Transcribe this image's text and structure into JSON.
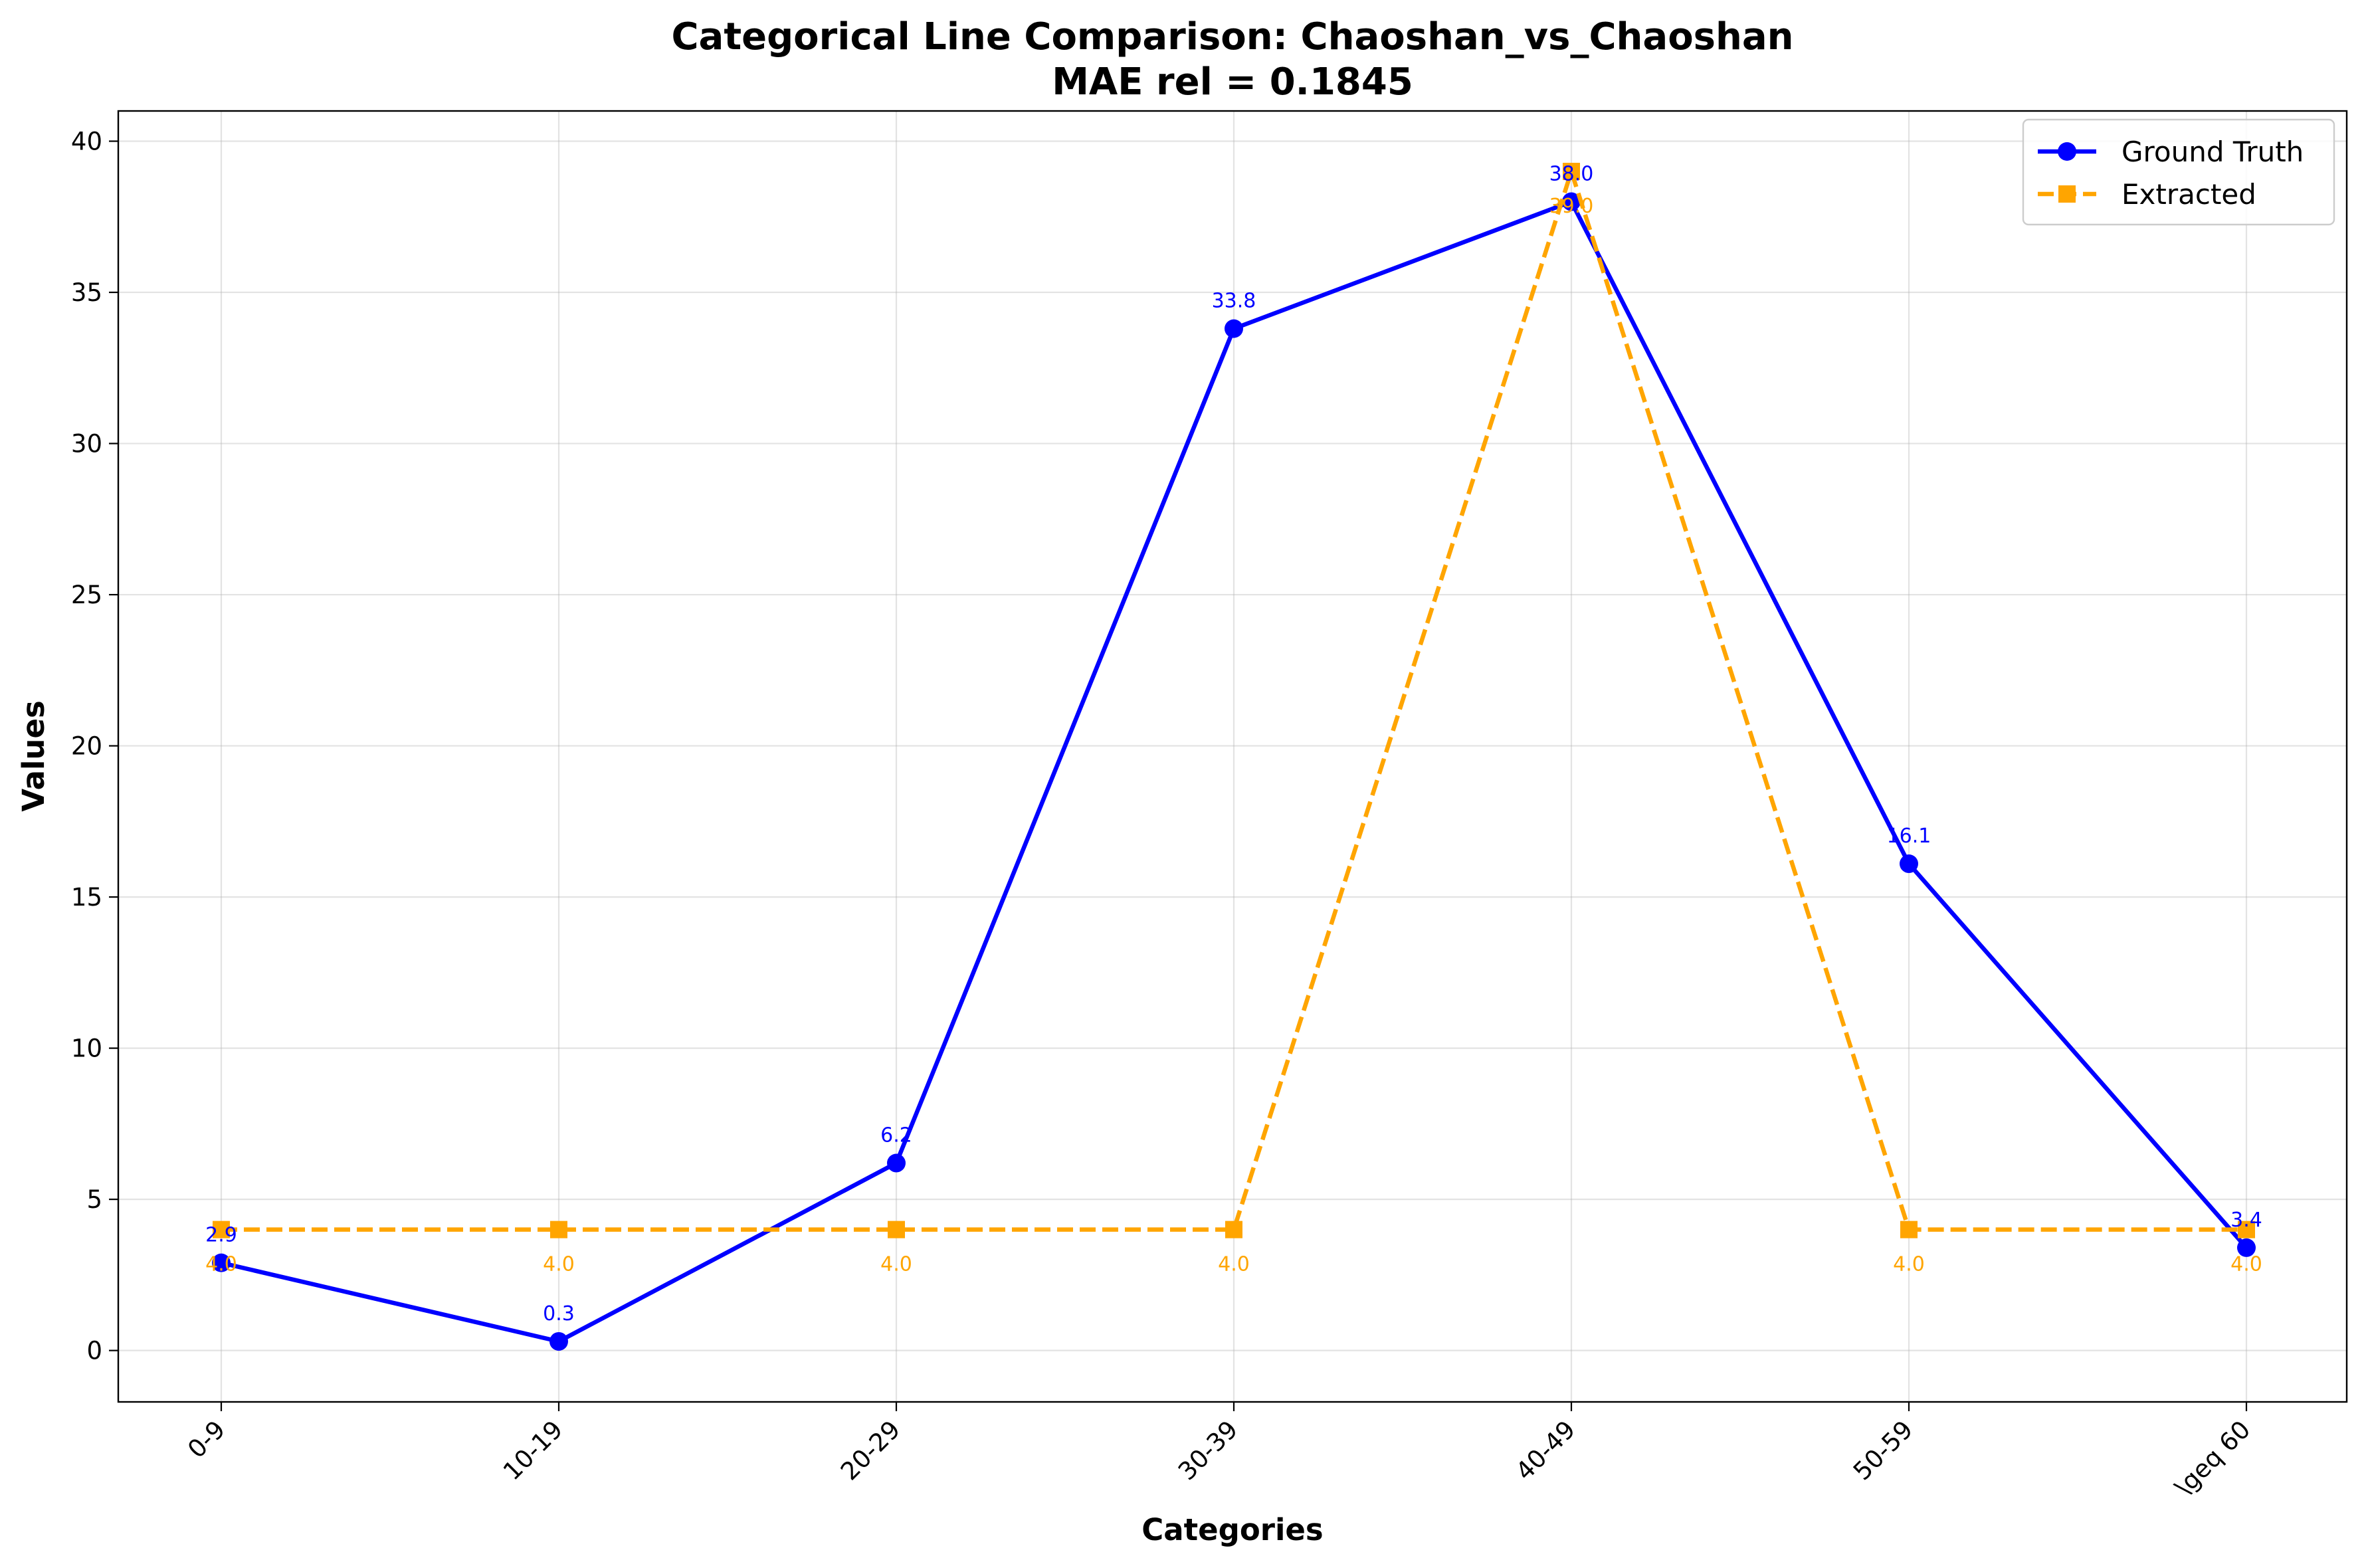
{
  "chart_data": {
    "type": "line",
    "title": "Categorical Line Comparison: Chaoshan_vs_Chaoshan",
    "subtitle": "MAE rel = 0.1845",
    "xlabel": "Categories",
    "ylabel": "Values",
    "categories": [
      "0-9",
      "10-19",
      "20-29",
      "30-39",
      "40-49",
      "50-59",
      "\\geq 60"
    ],
    "ylim": [
      -1.7,
      41
    ],
    "yticks": [
      0,
      5,
      10,
      15,
      20,
      25,
      30,
      35,
      40
    ],
    "grid": true,
    "legend_position": "top-right",
    "series": [
      {
        "name": "Ground Truth",
        "values": [
          2.9,
          0.3,
          6.2,
          33.8,
          38.0,
          16.1,
          3.4
        ],
        "labels": [
          "2.9",
          "0.3",
          "6.2",
          "33.8",
          "38.0",
          "16.1",
          "3.4"
        ],
        "color": "#0000ff",
        "line_style": "solid",
        "marker": "circle"
      },
      {
        "name": "Extracted",
        "values": [
          4.0,
          4.0,
          4.0,
          4.0,
          39.0,
          4.0,
          4.0
        ],
        "labels": [
          "4.0",
          "4.0",
          "4.0",
          "4.0",
          "39.0",
          "4.0",
          "4.0"
        ],
        "color": "#ffa500",
        "line_style": "dashed",
        "marker": "square"
      }
    ]
  }
}
